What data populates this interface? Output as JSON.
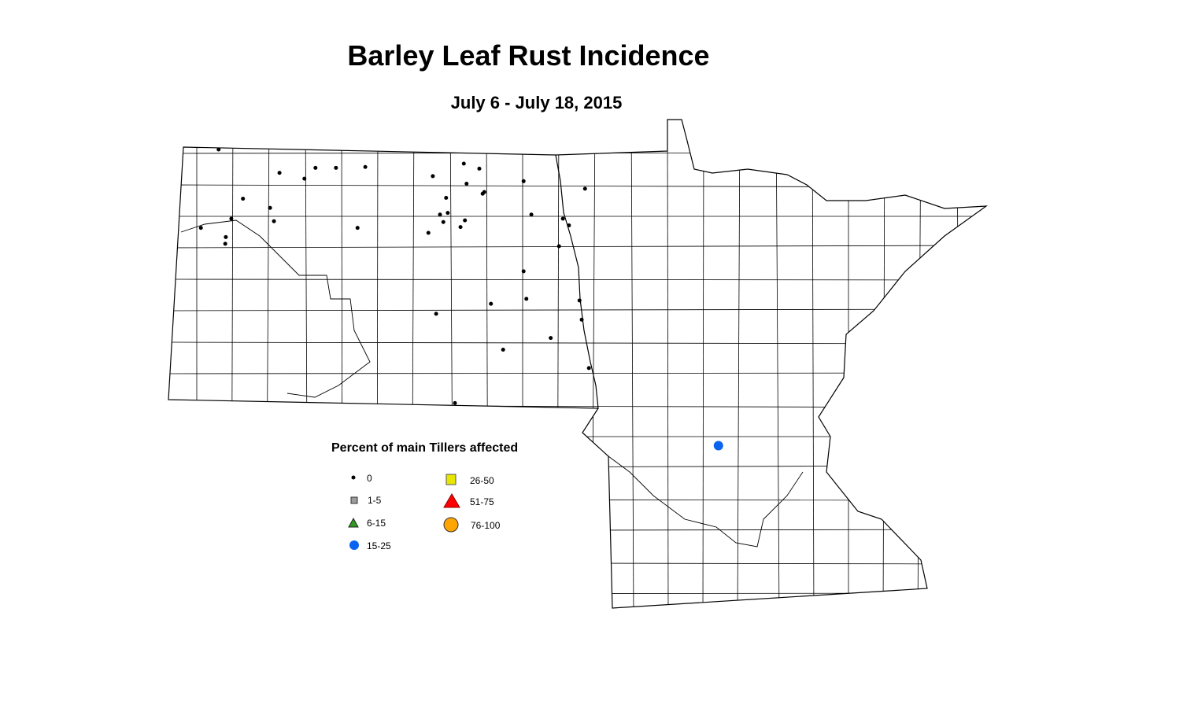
{
  "title": "Barley Leaf Rust Incidence",
  "subtitle": "July 6 - July 18, 2015",
  "legend": {
    "title": "Percent of main Tillers affected",
    "items": [
      {
        "label": "0",
        "symbol": "small-dot",
        "color": "#000000"
      },
      {
        "label": "1-5",
        "symbol": "square",
        "color": "#9c9c9c"
      },
      {
        "label": "6-15",
        "symbol": "triangle",
        "color": "#2e9a1e"
      },
      {
        "label": "15-25",
        "symbol": "circle",
        "color": "#0a64f0"
      },
      {
        "label": "26-50",
        "symbol": "square",
        "color": "#e6e600"
      },
      {
        "label": "51-75",
        "symbol": "triangle",
        "color": "#ff0000"
      },
      {
        "label": "76-100",
        "symbol": "circle",
        "color": "#ffa500"
      }
    ]
  },
  "regions": [
    "North Dakota",
    "Minnesota"
  ],
  "observations": [
    {
      "lon": -103.3,
      "lat": 49.0,
      "class": "0"
    },
    {
      "lon": -102.2,
      "lat": 48.72,
      "class": "0"
    },
    {
      "lon": -101.75,
      "lat": 48.65,
      "class": "0"
    },
    {
      "lon": -101.55,
      "lat": 48.78,
      "class": "0"
    },
    {
      "lon": -101.18,
      "lat": 48.78,
      "class": "0"
    },
    {
      "lon": -100.65,
      "lat": 48.79,
      "class": "0"
    },
    {
      "lon": -99.43,
      "lat": 48.68,
      "class": "0"
    },
    {
      "lon": -98.87,
      "lat": 48.83,
      "class": "0"
    },
    {
      "lon": -98.59,
      "lat": 48.77,
      "class": "0"
    },
    {
      "lon": -98.82,
      "lat": 48.59,
      "class": "0"
    },
    {
      "lon": -98.5,
      "lat": 48.49,
      "class": "0"
    },
    {
      "lon": -98.53,
      "lat": 48.47,
      "class": "0"
    },
    {
      "lon": -99.19,
      "lat": 48.42,
      "class": "0"
    },
    {
      "lon": -97.79,
      "lat": 48.62,
      "class": "0"
    },
    {
      "lon": -96.68,
      "lat": 48.53,
      "class": "0"
    },
    {
      "lon": -102.86,
      "lat": 48.41,
      "class": "0"
    },
    {
      "lon": -102.37,
      "lat": 48.3,
      "class": "0"
    },
    {
      "lon": -102.3,
      "lat": 48.14,
      "class": "0"
    },
    {
      "lon": -103.07,
      "lat": 48.17,
      "class": "0"
    },
    {
      "lon": -103.62,
      "lat": 48.06,
      "class": "0"
    },
    {
      "lon": -103.17,
      "lat": 47.95,
      "class": "0"
    },
    {
      "lon": -103.18,
      "lat": 47.87,
      "class": "0"
    },
    {
      "lon": -100.79,
      "lat": 48.06,
      "class": "0"
    },
    {
      "lon": -99.3,
      "lat": 48.22,
      "class": "0"
    },
    {
      "lon": -99.16,
      "lat": 48.24,
      "class": "0"
    },
    {
      "lon": -99.24,
      "lat": 48.13,
      "class": "0"
    },
    {
      "lon": -98.85,
      "lat": 48.15,
      "class": "0"
    },
    {
      "lon": -98.93,
      "lat": 48.07,
      "class": "0"
    },
    {
      "lon": -99.51,
      "lat": 48.0,
      "class": "0"
    },
    {
      "lon": -97.65,
      "lat": 48.22,
      "class": "0"
    },
    {
      "lon": -97.08,
      "lat": 48.17,
      "class": "0"
    },
    {
      "lon": -96.97,
      "lat": 48.09,
      "class": "0"
    },
    {
      "lon": -97.15,
      "lat": 47.84,
      "class": "0"
    },
    {
      "lon": -97.79,
      "lat": 47.54,
      "class": "0"
    },
    {
      "lon": -97.74,
      "lat": 47.21,
      "class": "0"
    },
    {
      "lon": -98.38,
      "lat": 47.15,
      "class": "0"
    },
    {
      "lon": -96.78,
      "lat": 47.19,
      "class": "0"
    },
    {
      "lon": -99.37,
      "lat": 47.03,
      "class": "0"
    },
    {
      "lon": -96.74,
      "lat": 46.96,
      "class": "0"
    },
    {
      "lon": -97.3,
      "lat": 46.74,
      "class": "0"
    },
    {
      "lon": -98.16,
      "lat": 46.6,
      "class": "0"
    },
    {
      "lon": -96.61,
      "lat": 46.38,
      "class": "0"
    },
    {
      "lon": -99.03,
      "lat": 45.96,
      "class": "0"
    },
    {
      "lon": -94.27,
      "lat": 45.45,
      "class": "15-25"
    }
  ]
}
